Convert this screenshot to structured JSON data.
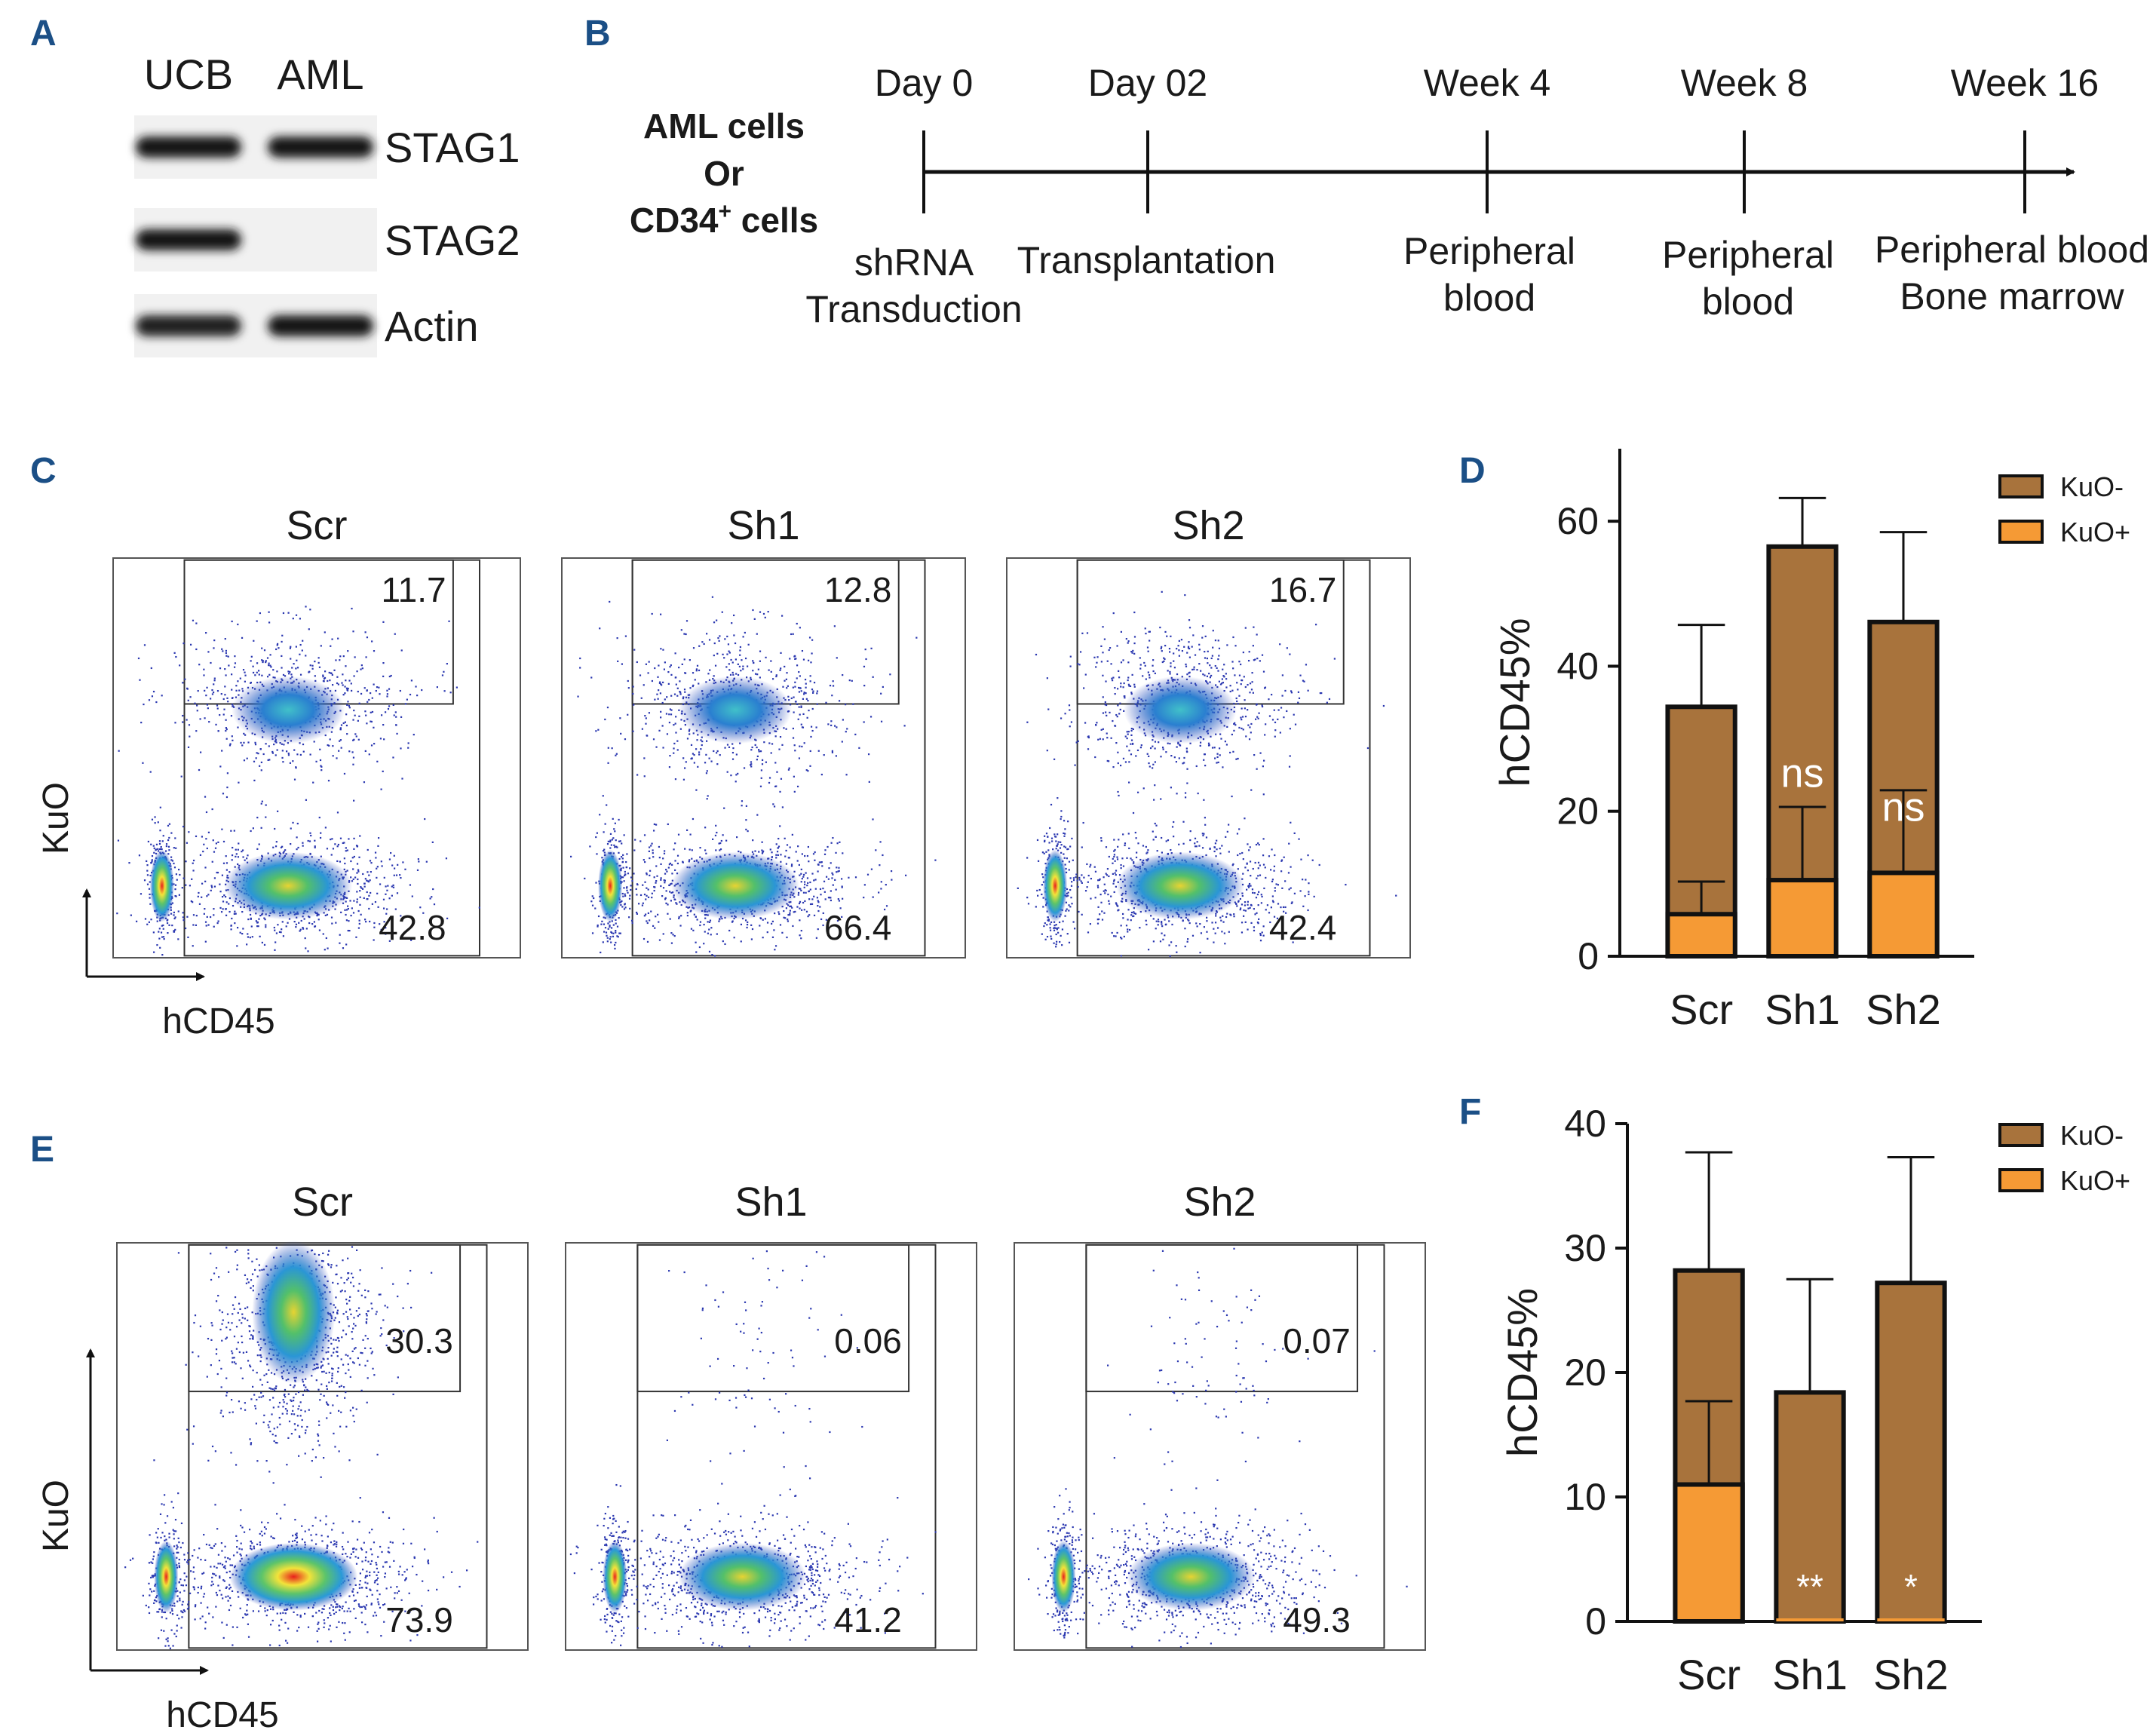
{
  "panels": {
    "A": "A",
    "B": "B",
    "C": "C",
    "D": "D",
    "E": "E",
    "F": "F"
  },
  "panelA": {
    "lanes": [
      "UCB",
      "AML"
    ],
    "blots": [
      {
        "name": "STAG1",
        "intensity": [
          1.0,
          1.0
        ]
      },
      {
        "name": "STAG2",
        "intensity": [
          1.0,
          0.0
        ]
      },
      {
        "name": "Actin",
        "intensity": [
          0.95,
          1.0
        ]
      }
    ]
  },
  "panelB": {
    "source_lines": [
      "AML cells",
      "Or",
      "CD34"
    ],
    "source_suffix": " cells",
    "source_superscript": "+",
    "events": [
      {
        "time": "Day 0",
        "lines": [
          "shRNA",
          "Transduction"
        ]
      },
      {
        "time": "Day 02",
        "lines": [
          "Transplantation"
        ]
      },
      {
        "time": "Week 4",
        "lines": [
          "Peripheral",
          "blood"
        ]
      },
      {
        "time": "Week 8",
        "lines": [
          "Peripheral",
          "blood"
        ]
      },
      {
        "time": "Week 16",
        "lines": [
          "Peripheral blood",
          "Bone marrow"
        ]
      }
    ]
  },
  "panelC": {
    "y_axis": "KuO",
    "x_axis": "hCD45",
    "plots": [
      {
        "title": "Scr",
        "top_gate": "11.7",
        "bottom_gate": "42.8",
        "kuo_pos_intensity": 1.0
      },
      {
        "title": "Sh1",
        "top_gate": "12.8",
        "bottom_gate": "66.4",
        "kuo_pos_intensity": 1.0
      },
      {
        "title": "Sh2",
        "top_gate": "16.7",
        "bottom_gate": "42.4",
        "kuo_pos_intensity": 1.0
      }
    ]
  },
  "panelE": {
    "y_axis": "KuO",
    "x_axis": "hCD45",
    "plots": [
      {
        "title": "Scr",
        "top_gate": "30.3",
        "bottom_gate": "73.9",
        "kuo_pos_intensity": 1.0
      },
      {
        "title": "Sh1",
        "top_gate": "0.06",
        "bottom_gate": "41.2",
        "kuo_pos_intensity": 0.0
      },
      {
        "title": "Sh2",
        "top_gate": "0.07",
        "bottom_gate": "49.3",
        "kuo_pos_intensity": 0.0
      }
    ]
  },
  "colors": {
    "kuo_neg": "#a8733c",
    "kuo_pos": "#f59a35",
    "panel_label": "#1b4f86"
  },
  "chart_data": [
    {
      "id": "D",
      "type": "bar",
      "stacked": true,
      "categories": [
        "Scr",
        "Sh1",
        "Sh2"
      ],
      "series": [
        {
          "name": "KuO+",
          "values": [
            5.8,
            10.5,
            11.5
          ],
          "err_top": [
            10.3,
            20.6,
            22.9
          ]
        },
        {
          "name": "KuO-",
          "values": [
            28.6,
            46.0,
            34.6
          ],
          "total": [
            34.4,
            56.5,
            46.1
          ],
          "err_top": [
            45.7,
            63.2,
            58.5
          ]
        }
      ],
      "legend": [
        "KuO-",
        "KuO+"
      ],
      "ylabel": "hCD45%",
      "ylim": [
        0,
        70
      ],
      "yticks": [
        0,
        20,
        40,
        60
      ],
      "annotations": [
        "",
        "ns",
        "ns"
      ]
    },
    {
      "id": "F",
      "type": "bar",
      "stacked": true,
      "categories": [
        "Scr",
        "Sh1",
        "Sh2"
      ],
      "series": [
        {
          "name": "KuO+",
          "values": [
            11.0,
            0.0,
            0.0
          ],
          "err_top": [
            17.7,
            0.0,
            0.0
          ]
        },
        {
          "name": "KuO-",
          "values": [
            17.2,
            18.4,
            27.2
          ],
          "total": [
            28.2,
            18.4,
            27.2
          ],
          "err_top": [
            37.7,
            27.5,
            37.3
          ]
        }
      ],
      "legend": [
        "KuO-",
        "KuO+"
      ],
      "ylabel": "hCD45%",
      "ylim": [
        0,
        40
      ],
      "yticks": [
        0,
        10,
        20,
        30,
        40
      ],
      "annotations": [
        "",
        "**",
        "*"
      ]
    }
  ]
}
